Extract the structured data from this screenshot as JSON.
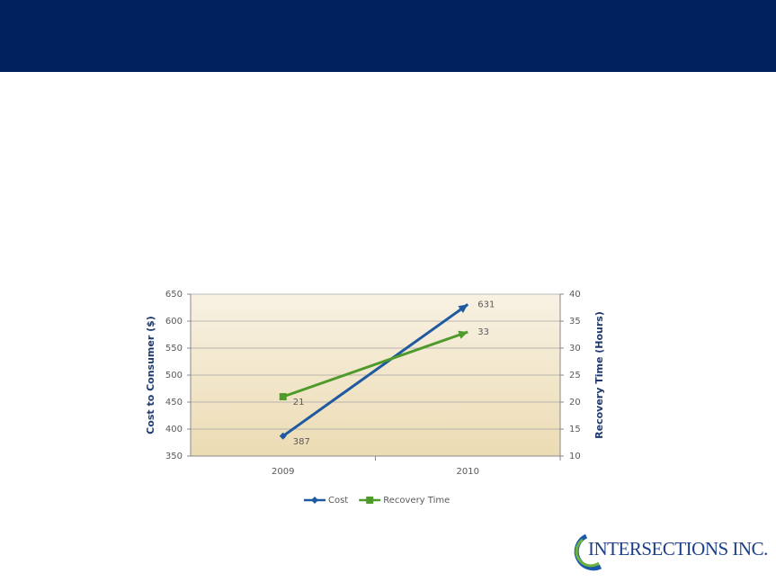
{
  "logo": "INTERSECTIONS INC.",
  "chart_data": {
    "type": "line",
    "categories": [
      "2009",
      "2010"
    ],
    "series": [
      {
        "name": "Cost",
        "color": "#1f5aa0",
        "marker": "diamond",
        "values": [
          387,
          631
        ]
      },
      {
        "name": "Recovery Time",
        "color": "#4e9a2a",
        "marker": "square",
        "values": [
          21,
          33
        ],
        "axis": "y2"
      }
    ],
    "ylabel": "Cost to Consumer ($)",
    "y2label": "Recovery Time (Hours)",
    "ylim": [
      350,
      650
    ],
    "yticks": [
      350,
      400,
      450,
      500,
      550,
      600,
      650
    ],
    "y2lim": [
      10,
      40
    ],
    "y2ticks": [
      10,
      15,
      20,
      25,
      30,
      35,
      40
    ],
    "grid": true,
    "legend": "bottom"
  }
}
